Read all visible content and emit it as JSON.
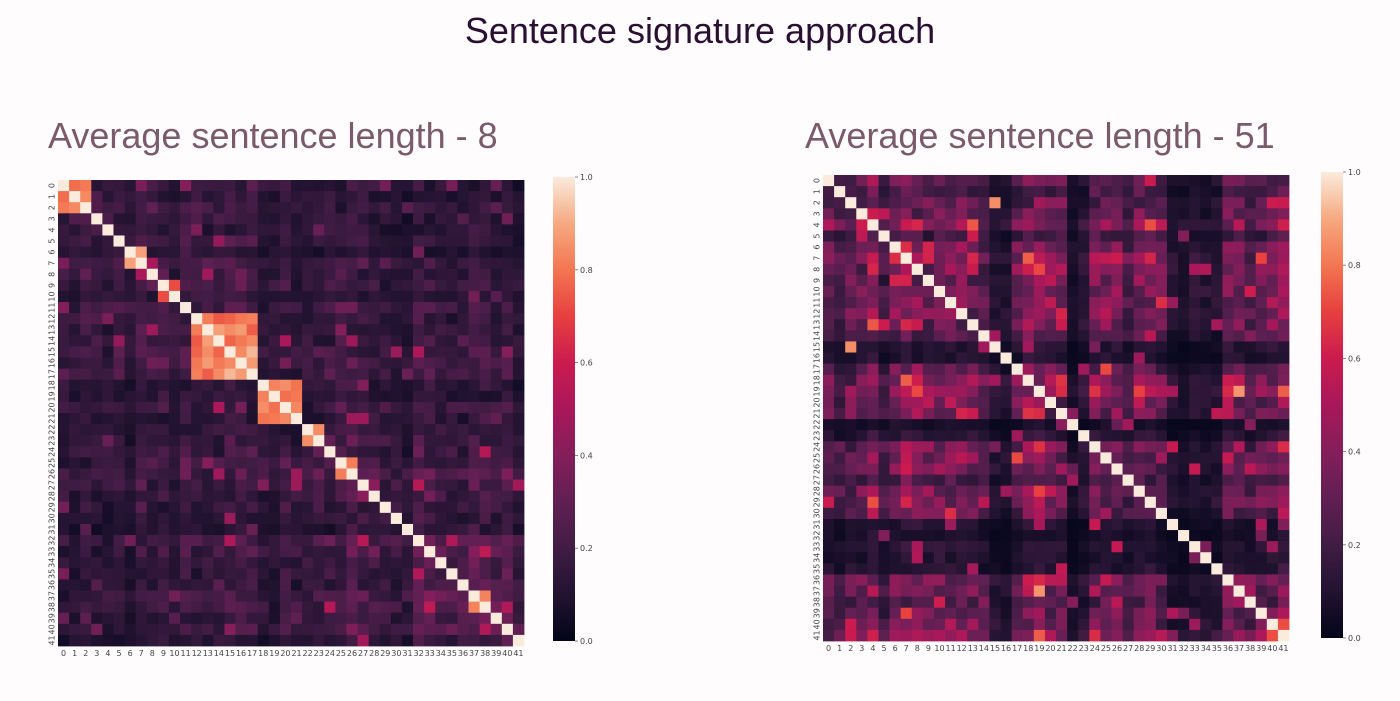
{
  "page": {
    "title": "Sentence signature approach"
  },
  "chart_data": [
    {
      "type": "heatmap",
      "title": "Average sentence length - 8",
      "x_tick_labels": [
        "0",
        "1",
        "2",
        "3",
        "4",
        "5",
        "6",
        "7",
        "8",
        "9",
        "10",
        "11",
        "12",
        "13",
        "14",
        "15",
        "16",
        "17",
        "18",
        "19",
        "20",
        "21",
        "22",
        "23",
        "24",
        "25",
        "26",
        "27",
        "28",
        "29",
        "30",
        "31",
        "32",
        "33",
        "34",
        "35",
        "36",
        "37",
        "38",
        "39",
        "40",
        "41"
      ],
      "y_tick_labels": [
        "0",
        "1",
        "2",
        "3",
        "4",
        "5",
        "6",
        "7",
        "8",
        "9",
        "10",
        "11",
        "12",
        "13",
        "14",
        "15",
        "16",
        "17",
        "18",
        "19",
        "20",
        "21",
        "22",
        "23",
        "24",
        "25",
        "26",
        "27",
        "28",
        "29",
        "30",
        "31",
        "32",
        "33",
        "34",
        "35",
        "36",
        "37",
        "38",
        "39",
        "40",
        "41"
      ],
      "colorbar": {
        "min": 0.0,
        "max": 1.0,
        "ticks": [
          "0.0",
          "0.2",
          "0.4",
          "0.6",
          "0.8",
          "1.0"
        ]
      },
      "colormap": "rocket",
      "matrix_size": 42,
      "diagonal_value": 1.0,
      "high_similarity_blocks": [
        [
          0,
          2
        ],
        [
          6,
          7
        ],
        [
          9,
          10
        ],
        [
          12,
          17
        ],
        [
          18,
          21
        ],
        [
          22,
          23
        ],
        [
          25,
          26
        ],
        [
          37,
          38
        ]
      ]
    },
    {
      "type": "heatmap",
      "title": "Average sentence length - 51",
      "x_tick_labels": [
        "0",
        "1",
        "2",
        "3",
        "4",
        "5",
        "6",
        "7",
        "8",
        "9",
        "10",
        "11",
        "12",
        "13",
        "14",
        "15",
        "16",
        "17",
        "18",
        "19",
        "20",
        "21",
        "22",
        "23",
        "24",
        "25",
        "26",
        "27",
        "28",
        "29",
        "30",
        "31",
        "32",
        "33",
        "34",
        "35",
        "36",
        "37",
        "38",
        "39",
        "40",
        "41"
      ],
      "y_tick_labels": [
        "0",
        "1",
        "2",
        "3",
        "4",
        "5",
        "6",
        "7",
        "8",
        "9",
        "10",
        "11",
        "12",
        "13",
        "14",
        "15",
        "16",
        "17",
        "18",
        "19",
        "20",
        "21",
        "22",
        "23",
        "24",
        "25",
        "26",
        "27",
        "28",
        "29",
        "30",
        "31",
        "32",
        "33",
        "34",
        "35",
        "36",
        "37",
        "38",
        "39",
        "40",
        "41"
      ],
      "colorbar": {
        "min": 0.0,
        "max": 1.0,
        "ticks": [
          "0.0",
          "0.2",
          "0.4",
          "0.6",
          "0.8",
          "1.0"
        ]
      },
      "colormap": "rocket",
      "matrix_size": 42,
      "diagonal_value": 1.0,
      "low_similarity_rows": [
        15,
        16,
        22,
        23,
        31,
        32,
        33,
        34,
        35
      ]
    }
  ]
}
